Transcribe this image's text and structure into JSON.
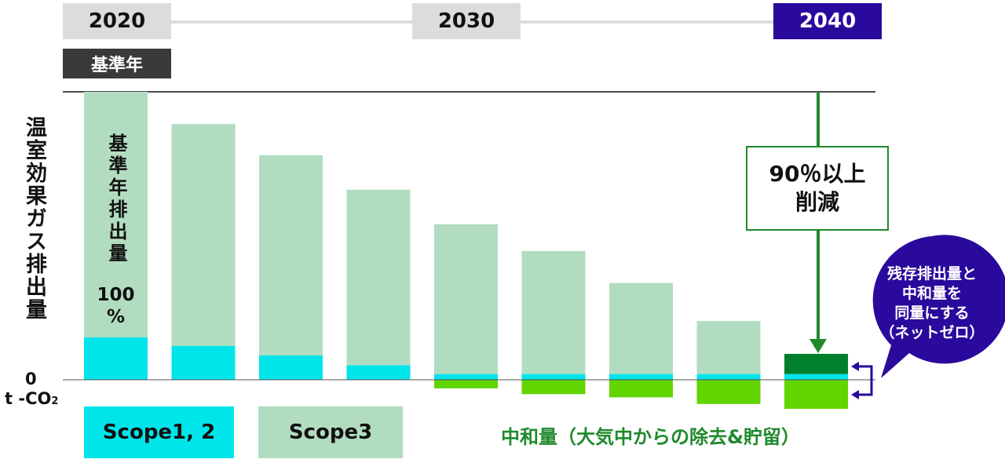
{
  "timeline": {
    "year_start": "2020",
    "year_mid": "2030",
    "year_end": "2040",
    "base_year_tag": "基準年"
  },
  "annotations": {
    "base_bar_label": "基準年排出量",
    "base_bar_percent_num": "100",
    "base_bar_percent_sign": "%",
    "reduction_line1": "90％以上",
    "reduction_line2": "削減",
    "net_zero_line1": "残存排出量と",
    "net_zero_line2": "中和量を",
    "net_zero_line3": "同量にする",
    "net_zero_line4": "（ネットゼロ）"
  },
  "legend": {
    "scope12": "Scope1, 2",
    "scope3": "Scope3",
    "neutralization": "中和量（大気中からの除去&貯留）"
  },
  "colors": {
    "scope12": "#00e5ea",
    "scope3": "#b2dcc0",
    "neutralization": "#62d400",
    "residual_dark": "#00802b",
    "accent": "#2a0a9c",
    "green_line": "#1f8a2c"
  },
  "chart_data": {
    "type": "bar",
    "ylabel": "温室効果ガス排出量",
    "y_zero_label": "0",
    "y_unit_prefix": "t -CO",
    "y_unit_sub": "2",
    "ylim": [
      -11,
      100
    ],
    "categories": [
      "",
      "",
      "",
      "",
      "",
      "",
      "",
      "",
      ""
    ],
    "series": [
      {
        "name": "Scope1, 2",
        "values": [
          14.7,
          11.8,
          8.5,
          5.1,
          2.0,
          2.0,
          2.0,
          2.0,
          2.0
        ]
      },
      {
        "name": "Scope3",
        "values": [
          85.3,
          77.0,
          69.5,
          60.9,
          52.0,
          42.7,
          31.6,
          18.4,
          0
        ]
      },
      {
        "name": "中和量（大気中からの除去&貯留）",
        "values": [
          0,
          0,
          0,
          0,
          -3.0,
          -5.0,
          -6.1,
          -8.4,
          -10.1
        ]
      }
    ],
    "residual_extra": [
      0,
      0,
      0,
      0,
      0,
      0,
      0,
      0,
      7.0
    ]
  }
}
